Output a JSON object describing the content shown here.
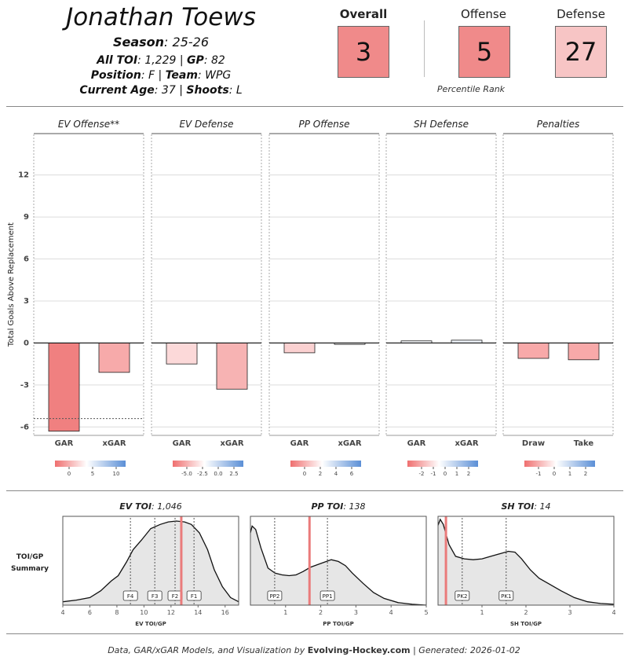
{
  "header": {
    "player_name": "Jonathan Toews",
    "season_label": "Season",
    "season": "25-26",
    "toi_label": "All TOI",
    "toi": "1,229",
    "gp_label": "GP",
    "gp": "82",
    "position_label": "Position",
    "position": "F",
    "team_label": "Team",
    "team": "WPG",
    "age_label": "Current Age",
    "age": "37",
    "shoots_label": "Shoots",
    "shoots": "L"
  },
  "percentile": {
    "overall_label": "Overall",
    "overall": "3",
    "offense_label": "Offense",
    "offense": "5",
    "defense_label": "Defense",
    "defense": "27",
    "caption": "Percentile Rank",
    "colors": {
      "overall": "#f08a8a",
      "offense": "#f08a8a",
      "defense": "#f7c5c5"
    }
  },
  "toi_summary_label": [
    "TOI/GP",
    "Summary"
  ],
  "footer": {
    "prefix": "Data, GAR/xGAR Models, and Visualization by ",
    "brand": "Evolving-Hockey.com",
    "suffix": " | Generated: 2026-01-02"
  },
  "chart_data": [
    {
      "type": "bar",
      "ylabel": "Total Goals Above Replacement",
      "ylim": [
        -6.6,
        14.9
      ],
      "yticks": [
        -6,
        -3,
        0,
        3,
        6,
        9,
        12
      ],
      "grid": true,
      "panels": [
        {
          "title": "EV Offense**",
          "categories": [
            "GAR",
            "xGAR"
          ],
          "values": [
            -6.3,
            -2.1
          ],
          "colors": [
            "#f08080",
            "#f7aaaa"
          ],
          "replacement_line": -5.4,
          "legend_ticks": [
            "0",
            "5",
            "10"
          ]
        },
        {
          "title": "EV Defense",
          "categories": [
            "GAR",
            "xGAR"
          ],
          "values": [
            -1.5,
            -3.3
          ],
          "colors": [
            "#fcd9d9",
            "#f7b3b3"
          ],
          "legend_ticks": [
            "-5.0",
            "-2.5",
            "0.0",
            "2.5"
          ]
        },
        {
          "title": "PP Offense",
          "categories": [
            "GAR",
            "xGAR"
          ],
          "values": [
            -0.7,
            -0.1
          ],
          "colors": [
            "#fbd1d1",
            "#f5f5f5"
          ],
          "legend_ticks": [
            "0",
            "2",
            "4",
            "6"
          ]
        },
        {
          "title": "SH Defense",
          "categories": [
            "GAR",
            "xGAR"
          ],
          "values": [
            0.15,
            0.2
          ],
          "colors": [
            "#f6f8fb",
            "#eef3f9"
          ],
          "legend_ticks": [
            "-2",
            "-1",
            "0",
            "1",
            "2"
          ]
        },
        {
          "title": "Penalties",
          "categories": [
            "Draw",
            "Take"
          ],
          "values": [
            -1.1,
            -1.2
          ],
          "colors": [
            "#f8a9a9",
            "#f8a9a9"
          ],
          "legend_ticks": [
            "-1",
            "0",
            "1",
            "2"
          ]
        }
      ]
    },
    {
      "type": "area",
      "title_label": "EV TOI",
      "title_value": "1,046",
      "xlabel": "EV TOI/GP",
      "xlim": [
        4,
        17
      ],
      "xticks": [
        4,
        6,
        8,
        10,
        12,
        14,
        16
      ],
      "player_value": 12.76,
      "density": [
        [
          4,
          0.04
        ],
        [
          5,
          0.06
        ],
        [
          6,
          0.09
        ],
        [
          6.8,
          0.17
        ],
        [
          7.6,
          0.29
        ],
        [
          8.1,
          0.35
        ],
        [
          8.7,
          0.51
        ],
        [
          9.2,
          0.66
        ],
        [
          9.8,
          0.77
        ],
        [
          10.5,
          0.91
        ],
        [
          11.2,
          0.96
        ],
        [
          11.8,
          0.99
        ],
        [
          12.4,
          1.0
        ],
        [
          13,
          0.99
        ],
        [
          13.5,
          0.96
        ],
        [
          14.1,
          0.86
        ],
        [
          14.7,
          0.66
        ],
        [
          15.2,
          0.42
        ],
        [
          15.8,
          0.22
        ],
        [
          16.4,
          0.09
        ],
        [
          17,
          0.04
        ]
      ],
      "markers": [
        {
          "label": "F4",
          "x": 9.0
        },
        {
          "label": "F3",
          "x": 10.8
        },
        {
          "label": "F2",
          "x": 12.3
        },
        {
          "label": "F1",
          "x": 13.7
        }
      ]
    },
    {
      "type": "area",
      "title_label": "PP TOI",
      "title_value": "138",
      "xlabel": "PP TOI/GP",
      "xlim": [
        0,
        5
      ],
      "xticks": [
        1,
        2,
        3,
        4,
        5
      ],
      "player_value": 1.68,
      "density": [
        [
          0,
          0.86
        ],
        [
          0.05,
          0.94
        ],
        [
          0.15,
          0.9
        ],
        [
          0.3,
          0.68
        ],
        [
          0.5,
          0.44
        ],
        [
          0.7,
          0.38
        ],
        [
          0.9,
          0.36
        ],
        [
          1.1,
          0.35
        ],
        [
          1.3,
          0.36
        ],
        [
          1.5,
          0.4
        ],
        [
          1.7,
          0.45
        ],
        [
          1.9,
          0.48
        ],
        [
          2.1,
          0.51
        ],
        [
          2.3,
          0.54
        ],
        [
          2.5,
          0.52
        ],
        [
          2.7,
          0.47
        ],
        [
          2.9,
          0.38
        ],
        [
          3.2,
          0.26
        ],
        [
          3.5,
          0.15
        ],
        [
          3.8,
          0.08
        ],
        [
          4.2,
          0.03
        ],
        [
          4.6,
          0.01
        ],
        [
          5,
          0.0
        ]
      ],
      "markers": [
        {
          "label": "PP2",
          "x": 0.69
        },
        {
          "label": "PP1",
          "x": 2.19
        }
      ]
    },
    {
      "type": "area",
      "title_label": "SH TOI",
      "title_value": "14",
      "xlabel": "SH TOI/GP",
      "xlim": [
        0,
        4
      ],
      "xticks": [
        1,
        2,
        3,
        4
      ],
      "player_value": 0.18,
      "density": [
        [
          0,
          0.95
        ],
        [
          0.05,
          1.02
        ],
        [
          0.12,
          0.96
        ],
        [
          0.25,
          0.72
        ],
        [
          0.4,
          0.58
        ],
        [
          0.6,
          0.55
        ],
        [
          0.8,
          0.54
        ],
        [
          1.0,
          0.55
        ],
        [
          1.2,
          0.58
        ],
        [
          1.4,
          0.61
        ],
        [
          1.6,
          0.64
        ],
        [
          1.75,
          0.63
        ],
        [
          1.9,
          0.55
        ],
        [
          2.1,
          0.42
        ],
        [
          2.3,
          0.32
        ],
        [
          2.5,
          0.26
        ],
        [
          2.8,
          0.17
        ],
        [
          3.1,
          0.09
        ],
        [
          3.4,
          0.04
        ],
        [
          3.7,
          0.02
        ],
        [
          4,
          0.01
        ]
      ],
      "markers": [
        {
          "label": "PK2",
          "x": 0.55
        },
        {
          "label": "PK1",
          "x": 1.55
        }
      ]
    }
  ]
}
